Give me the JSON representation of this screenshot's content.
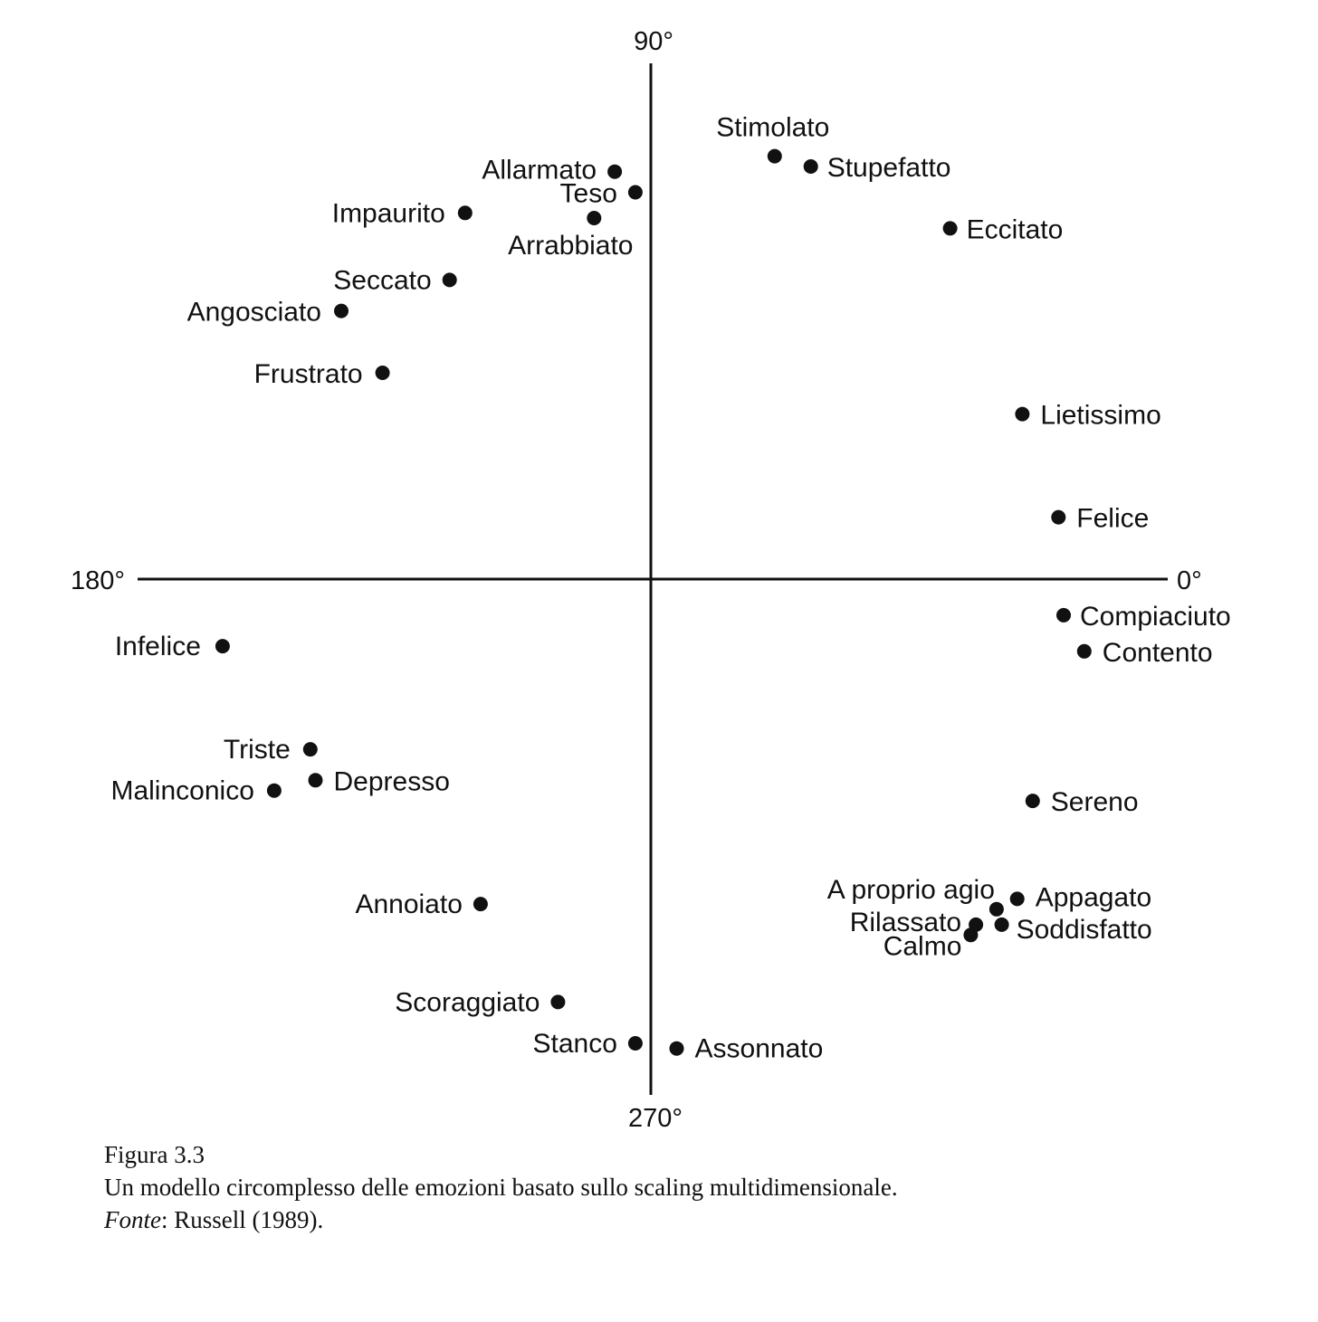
{
  "chart_data": {
    "type": "scatter",
    "title": "",
    "xlabel": "",
    "ylabel": "",
    "xlim": [
      -1,
      1
    ],
    "ylim": [
      -1,
      1
    ],
    "grid": false,
    "axis_labels": {
      "right": "0°",
      "top": "90°",
      "left": "180°",
      "bottom": "270°"
    },
    "points": [
      {
        "label": "Stimolato",
        "x": 0.24,
        "y": 0.82
      },
      {
        "label": "Stupefatto",
        "x": 0.31,
        "y": 0.8
      },
      {
        "label": "Eccitato",
        "x": 0.58,
        "y": 0.68
      },
      {
        "label": "Allarmato",
        "x": -0.07,
        "y": 0.79
      },
      {
        "label": "Teso",
        "x": -0.03,
        "y": 0.75
      },
      {
        "label": "Arrabbiato",
        "x": -0.11,
        "y": 0.7
      },
      {
        "label": "Impaurito",
        "x": -0.36,
        "y": 0.71
      },
      {
        "label": "Seccato",
        "x": -0.39,
        "y": 0.58
      },
      {
        "label": "Angosciato",
        "x": -0.6,
        "y": 0.52
      },
      {
        "label": "Frustrato",
        "x": -0.52,
        "y": 0.4
      },
      {
        "label": "Lietissimo",
        "x": 0.72,
        "y": 0.32
      },
      {
        "label": "Felice",
        "x": 0.79,
        "y": 0.12
      },
      {
        "label": "Compiaciuto",
        "x": 0.8,
        "y": -0.07
      },
      {
        "label": "Contento",
        "x": 0.84,
        "y": -0.14
      },
      {
        "label": "Infelice",
        "x": -0.83,
        "y": -0.13
      },
      {
        "label": "Triste",
        "x": -0.66,
        "y": -0.33
      },
      {
        "label": "Malinconico",
        "x": -0.73,
        "y": -0.41
      },
      {
        "label": "Depresso",
        "x": -0.65,
        "y": -0.39
      },
      {
        "label": "Sereno",
        "x": 0.74,
        "y": -0.43
      },
      {
        "label": "A proprio agio",
        "x": 0.67,
        "y": -0.64
      },
      {
        "label": "Appagato",
        "x": 0.71,
        "y": -0.62
      },
      {
        "label": "Rilassato",
        "x": 0.63,
        "y": -0.67
      },
      {
        "label": "Soddisfatto",
        "x": 0.68,
        "y": -0.67
      },
      {
        "label": "Calmo",
        "x": 0.62,
        "y": -0.69
      },
      {
        "label": "Annoiato",
        "x": -0.33,
        "y": -0.63
      },
      {
        "label": "Scoraggiato",
        "x": -0.18,
        "y": -0.82
      },
      {
        "label": "Stanco",
        "x": -0.03,
        "y": -0.9
      },
      {
        "label": "Assonnato",
        "x": 0.05,
        "y": -0.91
      }
    ]
  },
  "caption": {
    "figure_number": "Figura 3.3",
    "text": "Un modello circomplesso delle emozioni basato sullo scaling multidimensionale.",
    "source_label": "Fonte",
    "source_text": ": Russell (1989)."
  }
}
